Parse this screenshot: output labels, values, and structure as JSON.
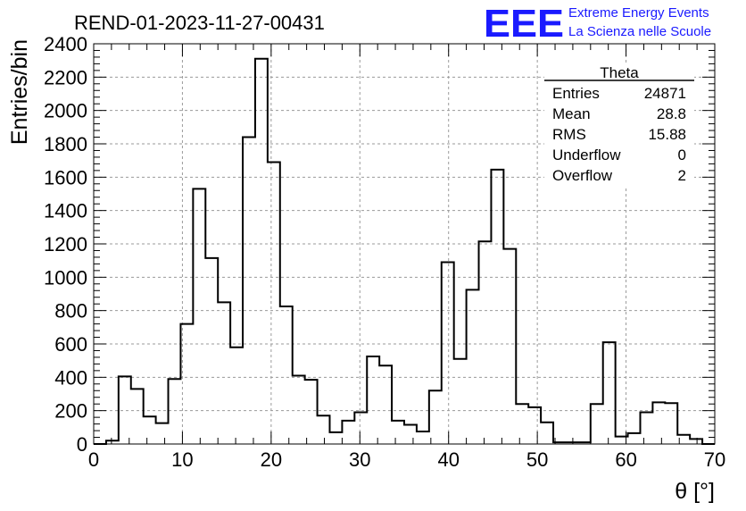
{
  "chart_data": {
    "type": "bar",
    "title": "REND-01-2023-11-27-00431",
    "xlabel": "θ [°]",
    "ylabel": "Entries/bin",
    "xlim": [
      0,
      70
    ],
    "ylim": [
      0,
      2400
    ],
    "x_ticks": [
      0,
      10,
      20,
      30,
      40,
      50,
      60,
      70
    ],
    "y_ticks": [
      0,
      200,
      400,
      600,
      800,
      1000,
      1200,
      1400,
      1600,
      1800,
      2000,
      2200,
      2400
    ],
    "grid": true,
    "bin_width": 1.4,
    "bin_start": 1.4,
    "values": [
      20,
      405,
      330,
      165,
      125,
      390,
      720,
      1530,
      1115,
      850,
      580,
      1840,
      2310,
      1690,
      825,
      410,
      385,
      170,
      70,
      140,
      190,
      525,
      470,
      140,
      115,
      75,
      320,
      1090,
      510,
      925,
      1215,
      1645,
      1170,
      240,
      220,
      130,
      10,
      10,
      10,
      240,
      610,
      45,
      65,
      190,
      250,
      245,
      55,
      30
    ],
    "histogram_color": "#000000"
  },
  "stats_box": {
    "title": "Theta",
    "rows": [
      {
        "label": "Entries",
        "value": "24871"
      },
      {
        "label": "Mean",
        "value": "28.8"
      },
      {
        "label": "RMS",
        "value": "15.88"
      },
      {
        "label": "Underflow",
        "value": "0"
      },
      {
        "label": "Overflow",
        "value": "2"
      }
    ]
  },
  "logo": {
    "mark": "EEE",
    "line1": "Extreme Energy Events",
    "line2": "La Scienza nelle Scuole",
    "color": "#1a1aff"
  }
}
